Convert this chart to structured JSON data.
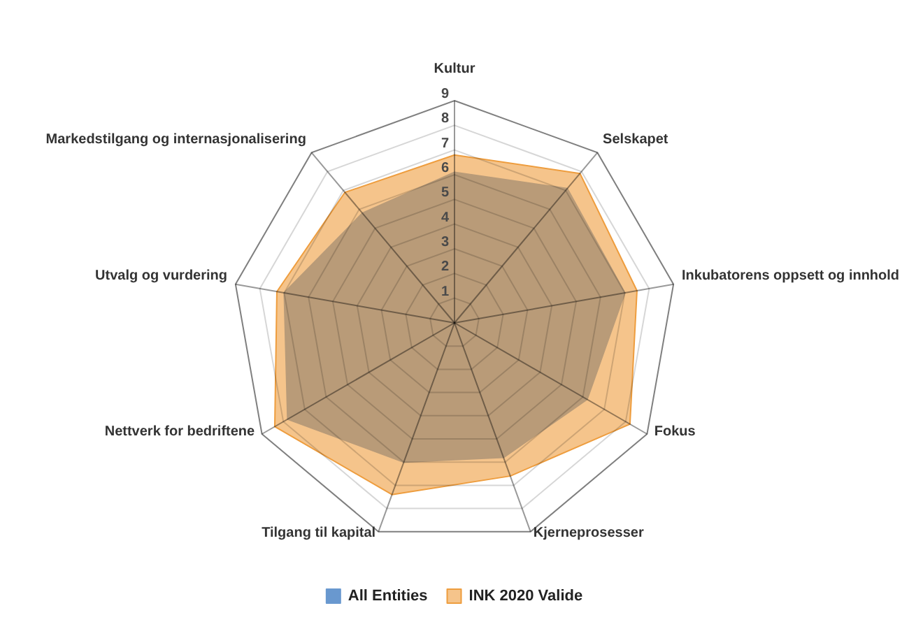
{
  "chart_data": {
    "type": "radar",
    "categories": [
      "Kultur",
      "Selskapet",
      "Inkubatorens oppsett og innhold",
      "Fokus",
      "Kjerneprosesser",
      "Tilgang til kapital",
      "Nettverk for bedriftene",
      "Utvalg og vurdering",
      "Markedstilgang og internasjonalisering"
    ],
    "series": [
      {
        "name": "All Entities",
        "color": "#6998cf",
        "values": [
          6.1,
          7.1,
          7.0,
          6.2,
          5.8,
          6.0,
          7.8,
          7.0,
          5.8
        ]
      },
      {
        "name": "INK 2020 Valide",
        "color": "#ee9d3e",
        "values": [
          6.8,
          7.9,
          7.5,
          8.2,
          6.6,
          7.4,
          8.4,
          7.3,
          6.9
        ]
      }
    ],
    "ylim": [
      0,
      9
    ],
    "yticks": [
      1,
      2,
      3,
      4,
      5,
      6,
      7,
      8,
      9
    ],
    "grid": true,
    "legend": "bottom",
    "marker": "none"
  }
}
